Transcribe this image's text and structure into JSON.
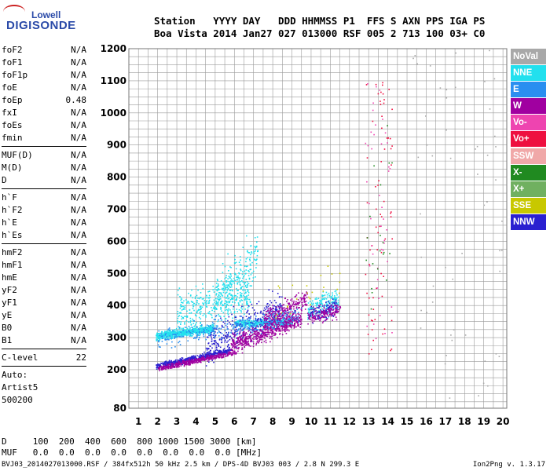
{
  "logo": {
    "line1": "Lowell",
    "line2": "DIGISONDE"
  },
  "header": {
    "labels": "Station   YYYY DAY   DDD HHMMSS P1  FFS S AXN PPS IGA PS",
    "values": "Boa Vista 2014 Jan27 027 013000 RSF 005 2 713 100 03+ C0"
  },
  "params": {
    "group1": [
      {
        "label": "foF2",
        "value": "N/A"
      },
      {
        "label": "foF1",
        "value": "N/A"
      },
      {
        "label": "foF1p",
        "value": "N/A"
      },
      {
        "label": "foE",
        "value": "N/A"
      },
      {
        "label": "foEp",
        "value": "0.48"
      },
      {
        "label": "fxI",
        "value": "N/A"
      },
      {
        "label": "foEs",
        "value": "N/A"
      },
      {
        "label": "fmin",
        "value": "N/A"
      }
    ],
    "group2": [
      {
        "label": "MUF(D)",
        "value": "N/A"
      },
      {
        "label": "M(D)",
        "value": "N/A"
      },
      {
        "label": "D",
        "value": "N/A"
      }
    ],
    "group3": [
      {
        "label": "h`F",
        "value": "N/A"
      },
      {
        "label": "h`F2",
        "value": "N/A"
      },
      {
        "label": "h`E",
        "value": "N/A"
      },
      {
        "label": "h`Es",
        "value": "N/A"
      }
    ],
    "group4": [
      {
        "label": "hmF2",
        "value": "N/A"
      },
      {
        "label": "hmF1",
        "value": "N/A"
      },
      {
        "label": "hmE",
        "value": "N/A"
      },
      {
        "label": "yF2",
        "value": "N/A"
      },
      {
        "label": "yF1",
        "value": "N/A"
      },
      {
        "label": "yE",
        "value": "N/A"
      },
      {
        "label": "B0",
        "value": "N/A"
      },
      {
        "label": "B1",
        "value": "N/A"
      }
    ],
    "clevel": {
      "label": "C-level",
      "value": "22"
    },
    "auto": [
      "Auto:",
      "Artist5",
      "500200"
    ]
  },
  "legend": [
    {
      "name": "NoVal",
      "color": "#a8a8a8"
    },
    {
      "name": "NNE",
      "color": "#22e0ee"
    },
    {
      "name": "E",
      "color": "#2a8ef0"
    },
    {
      "name": "W",
      "color": "#a000a0"
    },
    {
      "name": "Vo-",
      "color": "#ee44b0"
    },
    {
      "name": "Vo+",
      "color": "#ee1040"
    },
    {
      "name": "SSW",
      "color": "#f0a8a8"
    },
    {
      "name": "X-",
      "color": "#208a20"
    },
    {
      "name": "X+",
      "color": "#70b060"
    },
    {
      "name": "SSE",
      "color": "#c8c800"
    },
    {
      "name": "NNW",
      "color": "#2a20d0"
    }
  ],
  "footer": {
    "d_row": "D     100  200  400  600  800 1000 1500 3000 [km]",
    "muf_row": "MUF   0.0  0.0  0.0  0.0  0.0  0.0  0.0  0.0 [MHz]",
    "bottom": "BVJ03_2014027013000.RSF / 384fx512h 50 kHz 2.5 km / DPS-4D BVJ03 003 / 2.8 N 299.3 E",
    "version": "Ion2Png v. 1.3.17"
  },
  "chart_data": {
    "type": "scatter",
    "x_label_ticks": [
      "1",
      "2",
      "3",
      "4",
      "5",
      "6",
      "7",
      "8",
      "9",
      "10",
      "11",
      "12",
      "13",
      "14",
      "15",
      "16",
      "17",
      "18",
      "19",
      "20"
    ],
    "y_label_ticks": [
      "80",
      "200",
      "300",
      "400",
      "500",
      "600",
      "700",
      "800",
      "900",
      "1000",
      "1100",
      "1200"
    ],
    "xlim": [
      0.5,
      20.2
    ],
    "ylim": [
      80,
      1200
    ],
    "grid": true,
    "x_grid_minor_step": 0.5,
    "y_grid_minor_step": 25,
    "clusters": [
      {
        "series": "NNE",
        "color": "#22e0ee",
        "x": [
          1.9,
          4.9
        ],
        "y_center": [
          305,
          330
        ],
        "spread": 12,
        "n": 700
      },
      {
        "series": "NNE",
        "color": "#22e0ee",
        "x": [
          3.0,
          6.8
        ],
        "y_center": [
          380,
          440
        ],
        "spread": 60,
        "n": 380
      },
      {
        "series": "NNE",
        "color": "#22e0ee",
        "x": [
          5.0,
          7.2
        ],
        "y_center": [
          420,
          560
        ],
        "spread": 70,
        "n": 220
      },
      {
        "series": "NNE",
        "color": "#22e0ee",
        "x": [
          6.0,
          9.0
        ],
        "y_center": [
          345,
          350
        ],
        "spread": 10,
        "n": 400
      },
      {
        "series": "NNE",
        "color": "#22e0ee",
        "x": [
          9.8,
          11.4
        ],
        "y_center": [
          390,
          420
        ],
        "spread": 35,
        "n": 170
      },
      {
        "series": "NNW",
        "color": "#2a20d0",
        "x": [
          1.9,
          5.8
        ],
        "y_center": [
          212,
          262
        ],
        "spread": 9,
        "n": 520
      },
      {
        "series": "NNW",
        "color": "#2a20d0",
        "x": [
          4.5,
          8.5
        ],
        "y_center": [
          270,
          400
        ],
        "spread": 55,
        "n": 330
      },
      {
        "series": "NNW",
        "color": "#2a20d0",
        "x": [
          9.8,
          11.3
        ],
        "y_center": [
          370,
          400
        ],
        "spread": 25,
        "n": 110
      },
      {
        "series": "W",
        "color": "#a000a0",
        "x": [
          2.0,
          6.0
        ],
        "y_center": [
          205,
          255
        ],
        "spread": 8,
        "n": 380
      },
      {
        "series": "W",
        "color": "#a000a0",
        "x": [
          5.8,
          9.5
        ],
        "y_center": [
          280,
          360
        ],
        "spread": 28,
        "n": 560
      },
      {
        "series": "W",
        "color": "#a000a0",
        "x": [
          7.5,
          9.8
        ],
        "y_center": [
          350,
          420
        ],
        "spread": 35,
        "n": 280
      },
      {
        "series": "W",
        "color": "#a000a0",
        "x": [
          9.8,
          11.5
        ],
        "y_center": [
          365,
          390
        ],
        "spread": 25,
        "n": 140
      },
      {
        "series": "E",
        "color": "#2a8ef0",
        "x": [
          2.0,
          9.5
        ],
        "y_center": [
          300,
          370
        ],
        "spread": 30,
        "n": 320
      },
      {
        "series": "SSE",
        "color": "#c8c800",
        "x": [
          8.0,
          11.5
        ],
        "y_center": [
          400,
          500
        ],
        "spread": 60,
        "n": 25
      },
      {
        "series": "Vo+",
        "color": "#ee1040",
        "x": [
          12.8,
          14.2
        ],
        "y_center": [
          250,
          1100
        ],
        "spread": 20,
        "n": 70
      },
      {
        "series": "Vo-",
        "color": "#ee44b0",
        "x": [
          12.8,
          14.2
        ],
        "y_center": [
          250,
          1100
        ],
        "spread": 20,
        "n": 45
      },
      {
        "series": "X-",
        "color": "#208a20",
        "x": [
          12.8,
          14.2
        ],
        "y_center": [
          300,
          1100
        ],
        "spread": 20,
        "n": 20
      },
      {
        "series": "NoVal",
        "color": "#a8a8a8",
        "x": [
          15.0,
          20.0
        ],
        "y_center": [
          100,
          1200
        ],
        "spread": 20,
        "n": 55
      }
    ]
  }
}
